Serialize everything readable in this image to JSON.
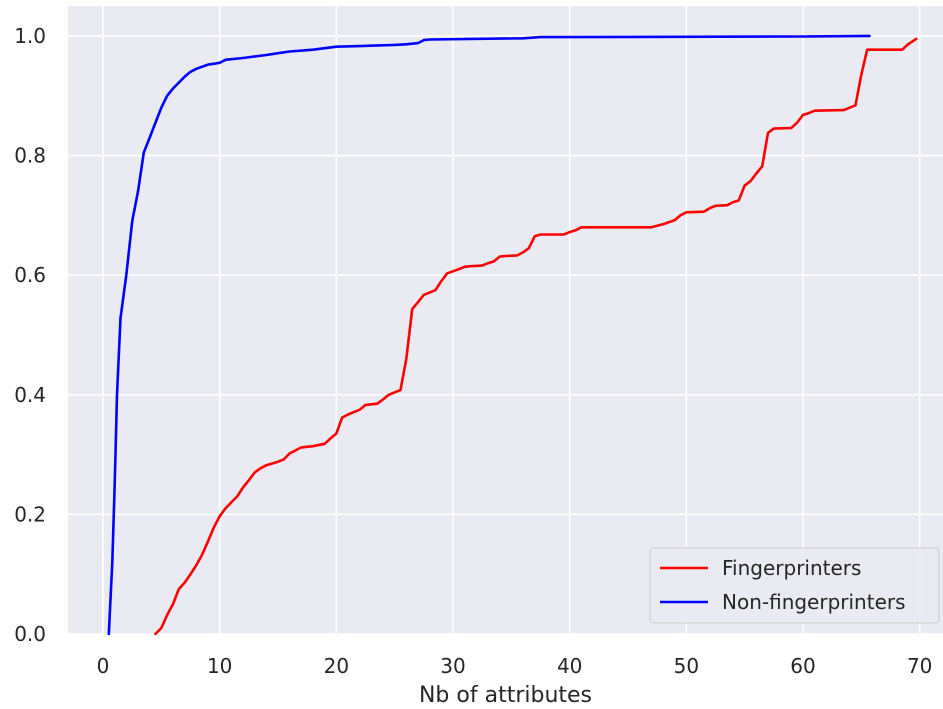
{
  "chart_data": {
    "type": "line",
    "title": "",
    "xlabel": "Nb of attributes",
    "ylabel": "",
    "xlim": [
      -3,
      72
    ],
    "ylim": [
      0,
      1.05
    ],
    "xticks": [
      0,
      10,
      20,
      30,
      40,
      50,
      60,
      70
    ],
    "yticks": [
      0.0,
      0.2,
      0.4,
      0.6,
      0.8,
      1.0
    ],
    "xtick_labels": [
      "0",
      "10",
      "20",
      "30",
      "40",
      "50",
      "60",
      "70"
    ],
    "ytick_labels": [
      "0.0",
      "0.2",
      "0.4",
      "0.6",
      "0.8",
      "1.0"
    ],
    "grid": true,
    "legend_position": "bottom-right",
    "colors": {
      "background": "#eaeaf2",
      "grid": "#ffffff",
      "text": "#262626"
    },
    "series": [
      {
        "name": "Fingerprinters",
        "color": "#ff0000",
        "points": [
          [
            4.5,
            0.0
          ],
          [
            5.0,
            0.01
          ],
          [
            5.5,
            0.032
          ],
          [
            6.0,
            0.05
          ],
          [
            6.5,
            0.075
          ],
          [
            7.0,
            0.086
          ],
          [
            7.5,
            0.1
          ],
          [
            8.0,
            0.115
          ],
          [
            8.5,
            0.133
          ],
          [
            9.0,
            0.155
          ],
          [
            9.5,
            0.178
          ],
          [
            10.0,
            0.197
          ],
          [
            10.5,
            0.21
          ],
          [
            11.0,
            0.22
          ],
          [
            11.5,
            0.23
          ],
          [
            12.0,
            0.245
          ],
          [
            12.5,
            0.257
          ],
          [
            13.0,
            0.27
          ],
          [
            13.5,
            0.277
          ],
          [
            14.0,
            0.282
          ],
          [
            14.5,
            0.285
          ],
          [
            15.0,
            0.288
          ],
          [
            15.5,
            0.292
          ],
          [
            16.0,
            0.302
          ],
          [
            16.5,
            0.307
          ],
          [
            17.0,
            0.312
          ],
          [
            18.0,
            0.314
          ],
          [
            19.0,
            0.318
          ],
          [
            19.5,
            0.327
          ],
          [
            20.0,
            0.335
          ],
          [
            20.5,
            0.362
          ],
          [
            21.0,
            0.367
          ],
          [
            22.0,
            0.375
          ],
          [
            22.5,
            0.383
          ],
          [
            23.5,
            0.385
          ],
          [
            24.0,
            0.392
          ],
          [
            24.5,
            0.4
          ],
          [
            25.5,
            0.408
          ],
          [
            26.0,
            0.46
          ],
          [
            26.5,
            0.543
          ],
          [
            27.0,
            0.555
          ],
          [
            27.5,
            0.567
          ],
          [
            28.5,
            0.575
          ],
          [
            29.0,
            0.59
          ],
          [
            29.5,
            0.603
          ],
          [
            30.5,
            0.61
          ],
          [
            31.0,
            0.614
          ],
          [
            31.5,
            0.615
          ],
          [
            32.5,
            0.616
          ],
          [
            33.0,
            0.62
          ],
          [
            33.5,
            0.623
          ],
          [
            34.0,
            0.631
          ],
          [
            34.5,
            0.632
          ],
          [
            35.5,
            0.633
          ],
          [
            36.0,
            0.638
          ],
          [
            36.5,
            0.645
          ],
          [
            37.0,
            0.665
          ],
          [
            37.5,
            0.668
          ],
          [
            39.5,
            0.668
          ],
          [
            40.0,
            0.672
          ],
          [
            40.5,
            0.675
          ],
          [
            41.0,
            0.68
          ],
          [
            47.0,
            0.68
          ],
          [
            48.0,
            0.685
          ],
          [
            49.0,
            0.692
          ],
          [
            49.5,
            0.7
          ],
          [
            50.0,
            0.705
          ],
          [
            51.5,
            0.706
          ],
          [
            52.0,
            0.712
          ],
          [
            52.5,
            0.716
          ],
          [
            53.5,
            0.717
          ],
          [
            54.0,
            0.722
          ],
          [
            54.5,
            0.725
          ],
          [
            55.0,
            0.75
          ],
          [
            55.5,
            0.757
          ],
          [
            56.0,
            0.77
          ],
          [
            56.5,
            0.782
          ],
          [
            57.0,
            0.838
          ],
          [
            57.5,
            0.845
          ],
          [
            59.0,
            0.846
          ],
          [
            59.5,
            0.855
          ],
          [
            60.0,
            0.868
          ],
          [
            60.5,
            0.871
          ],
          [
            61.0,
            0.875
          ],
          [
            63.5,
            0.876
          ],
          [
            64.0,
            0.88
          ],
          [
            64.5,
            0.884
          ],
          [
            65.0,
            0.935
          ],
          [
            65.5,
            0.977
          ],
          [
            68.5,
            0.977
          ],
          [
            69.0,
            0.986
          ],
          [
            69.7,
            0.995
          ]
        ]
      },
      {
        "name": "Non-fingerprinters",
        "color": "#0000ff",
        "points": [
          [
            0.5,
            0.0
          ],
          [
            0.8,
            0.12
          ],
          [
            1.0,
            0.25
          ],
          [
            1.2,
            0.4
          ],
          [
            1.5,
            0.528
          ],
          [
            2.0,
            0.6
          ],
          [
            2.5,
            0.69
          ],
          [
            3.0,
            0.74
          ],
          [
            3.5,
            0.805
          ],
          [
            4.0,
            0.83
          ],
          [
            4.5,
            0.855
          ],
          [
            5.0,
            0.88
          ],
          [
            5.5,
            0.9
          ],
          [
            6.0,
            0.912
          ],
          [
            6.5,
            0.922
          ],
          [
            7.0,
            0.932
          ],
          [
            7.5,
            0.94
          ],
          [
            8.0,
            0.945
          ],
          [
            9.0,
            0.952
          ],
          [
            10.0,
            0.955
          ],
          [
            10.5,
            0.96
          ],
          [
            12.0,
            0.963
          ],
          [
            14.0,
            0.968
          ],
          [
            15.0,
            0.971
          ],
          [
            16.0,
            0.974
          ],
          [
            18.0,
            0.977
          ],
          [
            20.0,
            0.982
          ],
          [
            22.0,
            0.983
          ],
          [
            25.0,
            0.985
          ],
          [
            26.0,
            0.986
          ],
          [
            27.0,
            0.988
          ],
          [
            27.5,
            0.993
          ],
          [
            28.0,
            0.994
          ],
          [
            36.0,
            0.996
          ],
          [
            37.5,
            0.998
          ],
          [
            40.0,
            0.998
          ],
          [
            60.0,
            0.999
          ],
          [
            65.7,
            1.0
          ]
        ]
      }
    ]
  }
}
